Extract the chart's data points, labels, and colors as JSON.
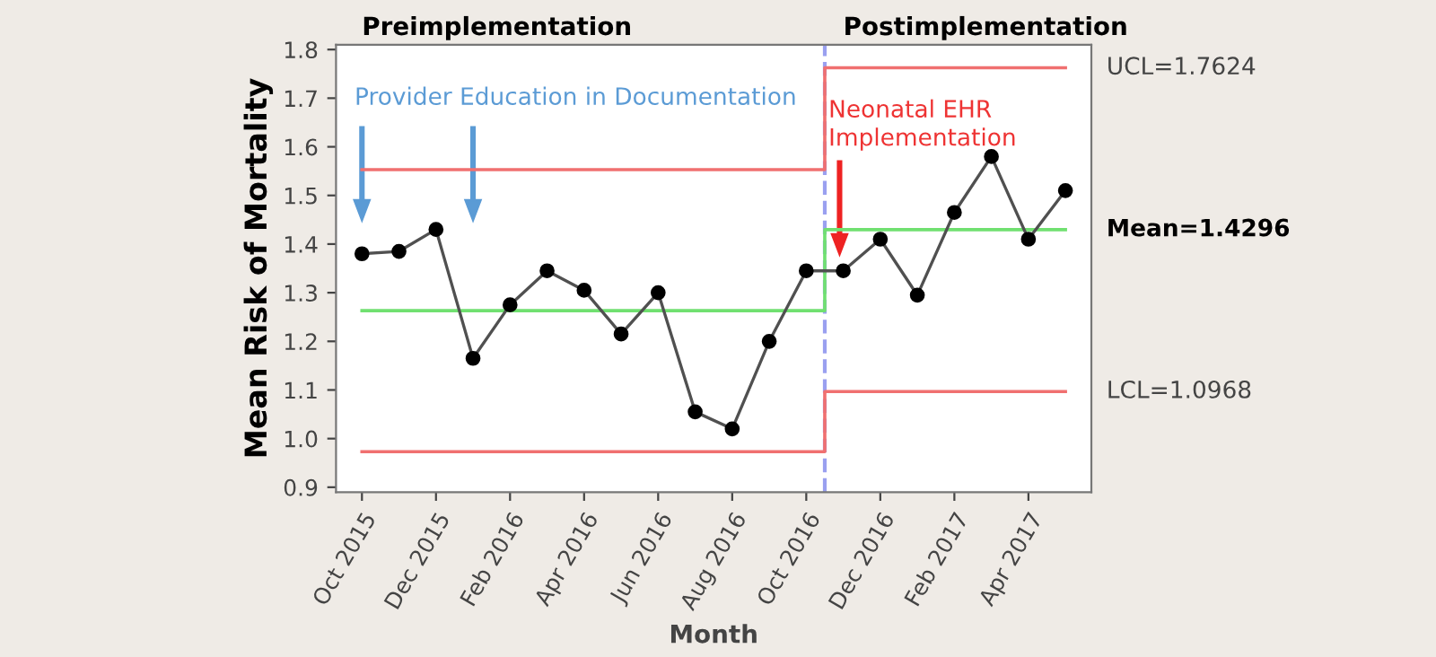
{
  "chart_data": {
    "type": "line",
    "xlabel": "Month",
    "ylabel": "Mean Risk of Mortality",
    "categories": [
      "Oct 2015",
      null,
      "Dec 2015",
      null,
      "Feb 2016",
      null,
      "Apr 2016",
      null,
      "Jun 2016",
      null,
      "Aug 2016",
      null,
      "Oct 2016",
      null,
      "Dec 2016",
      null,
      "Feb 2017",
      null,
      "Apr 2017",
      null
    ],
    "series": [
      {
        "type": "step",
        "color": "#f07070",
        "values": [
          1.553,
          1.553,
          1.553,
          1.553,
          1.553,
          1.553,
          1.553,
          1.553,
          1.553,
          1.553,
          1.553,
          1.553,
          1.553,
          1.7624,
          1.7624,
          1.7624,
          1.7624,
          1.7624,
          1.7624,
          1.7624
        ]
      },
      {
        "type": "step",
        "color": "#70e070",
        "values": [
          1.263,
          1.263,
          1.263,
          1.263,
          1.263,
          1.263,
          1.263,
          1.263,
          1.263,
          1.263,
          1.263,
          1.263,
          1.263,
          1.4296,
          1.4296,
          1.4296,
          1.4296,
          1.4296,
          1.4296,
          1.4296
        ]
      },
      {
        "type": "step",
        "color": "#f07070",
        "values": [
          0.973,
          0.973,
          0.973,
          0.973,
          0.973,
          0.973,
          0.973,
          0.973,
          0.973,
          0.973,
          0.973,
          0.973,
          0.973,
          1.0968,
          1.0968,
          1.0968,
          1.0968,
          1.0968,
          1.0968,
          1.0968
        ]
      },
      {
        "color": "#505050",
        "marker": "circle",
        "values": [
          1.38,
          1.385,
          1.43,
          1.165,
          1.275,
          1.345,
          1.305,
          1.215,
          1.3,
          1.055,
          1.02,
          1.2,
          1.345,
          1.345,
          1.41,
          1.295,
          1.465,
          1.58,
          1.41,
          1.51
        ]
      }
    ],
    "ylim": [
      0.89,
      1.81
    ],
    "yticks": [
      {
        "value": 0.9,
        "label": "0.9"
      },
      {
        "value": 1.0,
        "label": "1.0"
      },
      {
        "value": 1.1,
        "label": "1.1"
      },
      {
        "value": 1.2,
        "label": "1.2"
      },
      {
        "value": 1.3,
        "label": "1.3"
      },
      {
        "value": 1.4,
        "label": "1.4"
      },
      {
        "value": 1.5,
        "label": "1.5"
      },
      {
        "value": 1.6,
        "label": "1.6"
      },
      {
        "value": 1.7,
        "label": "1.7"
      },
      {
        "value": 1.8,
        "label": "1.8"
      }
    ],
    "annotations": [
      "Preimplementation",
      "Postimplementation",
      "Provider Education in Documentation",
      "Neonatal EHR Implementation",
      "UCL=1.7624",
      "Mean=1.4296",
      "LCL=1.0968"
    ],
    "grid": false,
    "legend": false
  }
}
